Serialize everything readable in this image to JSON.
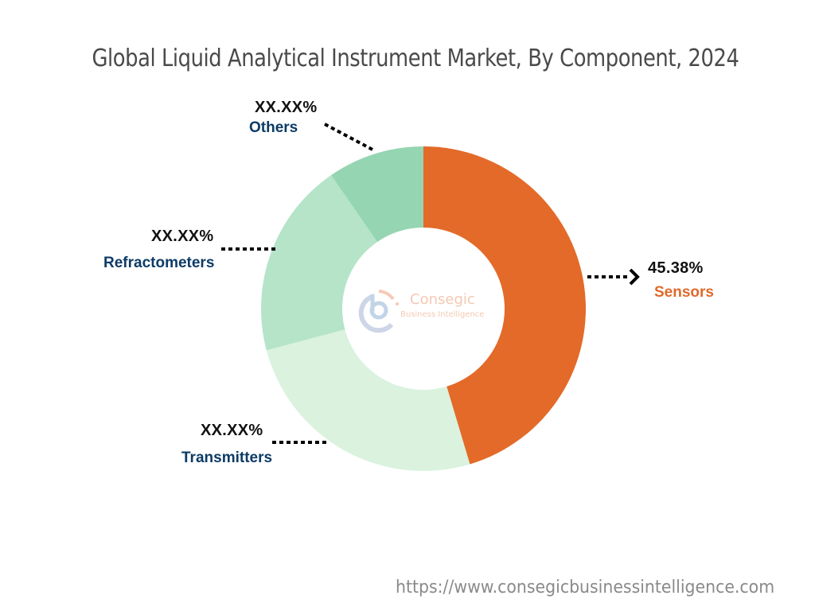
{
  "title": "Global Liquid Analytical Instrument Market, By Component, 2024",
  "footer_url": "https://www.consegicbusinessintelligence.com",
  "logo": {
    "name": "Consegic",
    "tagline": "Business Intelligence"
  },
  "labels": {
    "sensors": {
      "pct": "45.38%",
      "name": "Sensors"
    },
    "transmitters": {
      "pct": "XX.XX%",
      "name": "Transmitters"
    },
    "refractometers": {
      "pct": "XX.XX%",
      "name": "Refractometers"
    },
    "others": {
      "pct": "XX.XX%",
      "name": "Others"
    }
  },
  "colors": {
    "sensors": "#e36a29",
    "transmitters": "#daf2de",
    "refractometers": "#b5e4c8",
    "others": "#95d5b2",
    "label_dark": "#0d3b66",
    "label_orange": "#e0692b"
  },
  "chart_data": {
    "type": "pie",
    "subtype": "donut",
    "title": "Global Liquid Analytical Instrument Market, By Component, 2024",
    "categories": [
      "Sensors",
      "Transmitters",
      "Refractometers",
      "Others"
    ],
    "values": [
      45.38,
      25.5,
      19.5,
      9.62
    ],
    "value_labels": [
      "45.38%",
      "XX.XX%",
      "XX.XX%",
      "XX.XX%"
    ],
    "colors": [
      "#e36a29",
      "#daf2de",
      "#b5e4c8",
      "#95d5b2"
    ],
    "start_angle": "12 o'clock",
    "direction": "clockwise",
    "legend": "none (callout labels)",
    "note": "Only Sensors value is labeled; other slice values estimated from geometry"
  }
}
